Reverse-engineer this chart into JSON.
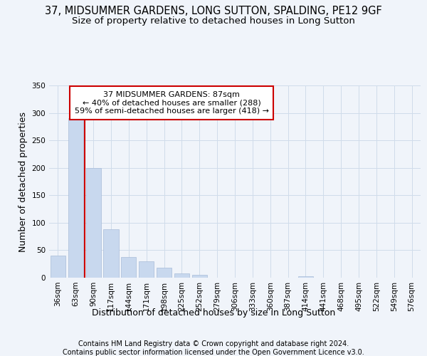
{
  "title": "37, MIDSUMMER GARDENS, LONG SUTTON, SPALDING, PE12 9GF",
  "subtitle": "Size of property relative to detached houses in Long Sutton",
  "xlabel": "Distribution of detached houses by size in Long Sutton",
  "ylabel": "Number of detached properties",
  "footer1": "Contains HM Land Registry data © Crown copyright and database right 2024.",
  "footer2": "Contains public sector information licensed under the Open Government Licence v3.0.",
  "bar_color": "#c8d8ee",
  "bar_edge_color": "#a8bcd8",
  "grid_color": "#d0dcea",
  "bg_color": "#f0f4fa",
  "plot_bg_color": "#f0f4fa",
  "categories": [
    "36sqm",
    "63sqm",
    "90sqm",
    "117sqm",
    "144sqm",
    "171sqm",
    "198sqm",
    "225sqm",
    "252sqm",
    "279sqm",
    "306sqm",
    "333sqm",
    "360sqm",
    "387sqm",
    "414sqm",
    "441sqm",
    "468sqm",
    "495sqm",
    "522sqm",
    "549sqm",
    "576sqm"
  ],
  "values": [
    40,
    290,
    200,
    88,
    38,
    30,
    18,
    8,
    5,
    0,
    0,
    0,
    0,
    0,
    2,
    0,
    0,
    0,
    0,
    0,
    0
  ],
  "property_bin_index": 2,
  "vline_x_offset": -0.5,
  "annotation_text": "37 MIDSUMMER GARDENS: 87sqm\n← 40% of detached houses are smaller (288)\n59% of semi-detached houses are larger (418) →",
  "annotation_box_color": "#ffffff",
  "annotation_box_edge_color": "#cc0000",
  "vline_color": "#cc0000",
  "ylim": [
    0,
    350
  ],
  "yticks": [
    0,
    50,
    100,
    150,
    200,
    250,
    300,
    350
  ],
  "title_fontsize": 10.5,
  "subtitle_fontsize": 9.5,
  "annotation_fontsize": 8,
  "axis_label_fontsize": 9,
  "tick_fontsize": 7.5,
  "footer_fontsize": 7
}
